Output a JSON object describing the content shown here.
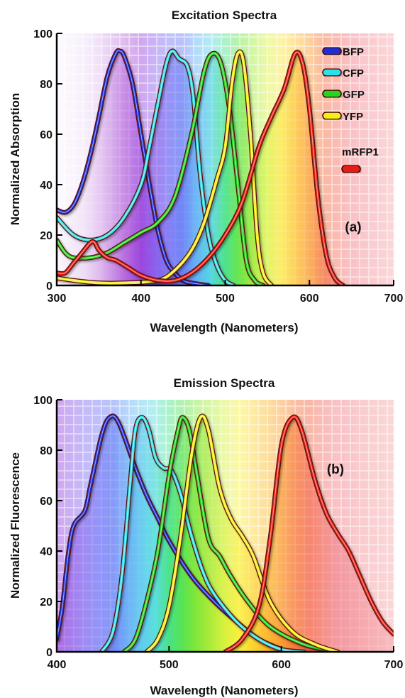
{
  "chart_data": [
    {
      "type": "area",
      "title": "Excitation Spectra",
      "xlabel": "Wavelength (Nanometers)",
      "ylabel": "Normalized Absorption",
      "panel_label": "(a)",
      "xlim": [
        300,
        700
      ],
      "ylim": [
        0,
        100
      ],
      "x_ticks": [
        "300",
        "400",
        "500",
        "600",
        "700"
      ],
      "y_ticks": [
        "0",
        "20",
        "40",
        "60",
        "80",
        "100"
      ],
      "legend_position": "top-right",
      "series": [
        {
          "name": "BFP",
          "color": "#1a2fd6",
          "points": [
            [
              300,
              30
            ],
            [
              310,
              29
            ],
            [
              320,
              32
            ],
            [
              330,
              40
            ],
            [
              340,
              52
            ],
            [
              350,
              67
            ],
            [
              360,
              83
            ],
            [
              370,
              92
            ],
            [
              375,
              93
            ],
            [
              380,
              91
            ],
            [
              390,
              80
            ],
            [
              400,
              60
            ],
            [
              410,
              40
            ],
            [
              420,
              22
            ],
            [
              430,
              10
            ],
            [
              440,
              5
            ],
            [
              450,
              2
            ],
            [
              460,
              1
            ],
            [
              480,
              0
            ]
          ]
        },
        {
          "name": "CFP",
          "color": "#2ee0e8",
          "points": [
            [
              300,
              27
            ],
            [
              320,
              20
            ],
            [
              340,
              18
            ],
            [
              360,
              20
            ],
            [
              380,
              27
            ],
            [
              400,
              40
            ],
            [
              410,
              55
            ],
            [
              420,
              72
            ],
            [
              430,
              88
            ],
            [
              437,
              93
            ],
            [
              445,
              90
            ],
            [
              455,
              87
            ],
            [
              462,
              75
            ],
            [
              470,
              45
            ],
            [
              480,
              20
            ],
            [
              490,
              8
            ],
            [
              500,
              2
            ],
            [
              510,
              0
            ]
          ]
        },
        {
          "name": "GFP",
          "color": "#22d61e",
          "points": [
            [
              300,
              18
            ],
            [
              310,
              13
            ],
            [
              320,
              11
            ],
            [
              340,
              11
            ],
            [
              360,
              13
            ],
            [
              380,
              17
            ],
            [
              400,
              21
            ],
            [
              420,
              25
            ],
            [
              440,
              35
            ],
            [
              460,
              60
            ],
            [
              475,
              85
            ],
            [
              485,
              92
            ],
            [
              495,
              88
            ],
            [
              505,
              70
            ],
            [
              515,
              40
            ],
            [
              525,
              10
            ],
            [
              535,
              2
            ],
            [
              545,
              0
            ]
          ]
        },
        {
          "name": "YFP",
          "color": "#f2f01e",
          "points": [
            [
              300,
              3
            ],
            [
              320,
              2
            ],
            [
              350,
              1
            ],
            [
              380,
              1
            ],
            [
              420,
              2
            ],
            [
              440,
              6
            ],
            [
              460,
              14
            ],
            [
              475,
              25
            ],
            [
              490,
              42
            ],
            [
              500,
              55
            ],
            [
              508,
              80
            ],
            [
              515,
              92
            ],
            [
              522,
              88
            ],
            [
              530,
              60
            ],
            [
              538,
              20
            ],
            [
              545,
              5
            ],
            [
              555,
              0
            ]
          ]
        },
        {
          "name": "mRFP1",
          "color": "#e81f12",
          "points": [
            [
              300,
              5
            ],
            [
              310,
              5
            ],
            [
              320,
              9
            ],
            [
              330,
              13
            ],
            [
              340,
              17
            ],
            [
              345,
              17
            ],
            [
              350,
              14
            ],
            [
              360,
              11
            ],
            [
              370,
              10
            ],
            [
              385,
              7
            ],
            [
              400,
              4
            ],
            [
              420,
              2
            ],
            [
              440,
              2
            ],
            [
              460,
              5
            ],
            [
              480,
              11
            ],
            [
              500,
              20
            ],
            [
              520,
              33
            ],
            [
              540,
              55
            ],
            [
              555,
              67
            ],
            [
              570,
              78
            ],
            [
              583,
              92
            ],
            [
              592,
              88
            ],
            [
              600,
              70
            ],
            [
              610,
              35
            ],
            [
              620,
              12
            ],
            [
              630,
              3
            ],
            [
              640,
              0
            ]
          ]
        }
      ]
    },
    {
      "type": "area",
      "title": "Emission Spectra",
      "xlabel": "Wavelength (Nanometers)",
      "ylabel": "Normalized Fluorescence",
      "panel_label": "(b)",
      "xlim": [
        400,
        700
      ],
      "ylim": [
        0,
        100
      ],
      "x_ticks": [
        "400",
        "500",
        "600",
        "700"
      ],
      "y_ticks": [
        "0",
        "20",
        "40",
        "60",
        "80",
        "100"
      ],
      "series": [
        {
          "name": "BFP",
          "color": "#1a2fd6",
          "points": [
            [
              400,
              5
            ],
            [
              405,
              18
            ],
            [
              410,
              38
            ],
            [
              415,
              50
            ],
            [
              425,
              56
            ],
            [
              430,
              66
            ],
            [
              440,
              86
            ],
            [
              447,
              93
            ],
            [
              455,
              91
            ],
            [
              470,
              73
            ],
            [
              480,
              62
            ],
            [
              490,
              53
            ],
            [
              500,
              44
            ],
            [
              520,
              30
            ],
            [
              540,
              20
            ],
            [
              560,
              12
            ],
            [
              580,
              5
            ],
            [
              600,
              1
            ]
          ]
        },
        {
          "name": "CFP",
          "color": "#2ee0e8",
          "points": [
            [
              440,
              0
            ],
            [
              450,
              8
            ],
            [
              458,
              30
            ],
            [
              465,
              65
            ],
            [
              470,
              88
            ],
            [
              476,
              93
            ],
            [
              482,
              88
            ],
            [
              488,
              77
            ],
            [
              495,
              73
            ],
            [
              502,
              72
            ],
            [
              510,
              63
            ],
            [
              520,
              46
            ],
            [
              530,
              32
            ],
            [
              540,
              23
            ],
            [
              560,
              12
            ],
            [
              580,
              5
            ],
            [
              600,
              1
            ],
            [
              620,
              0
            ]
          ]
        },
        {
          "name": "GFP",
          "color": "#22d61e",
          "points": [
            [
              460,
              0
            ],
            [
              470,
              5
            ],
            [
              480,
              20
            ],
            [
              490,
              40
            ],
            [
              500,
              70
            ],
            [
              508,
              88
            ],
            [
              512,
              93
            ],
            [
              518,
              88
            ],
            [
              525,
              70
            ],
            [
              535,
              45
            ],
            [
              545,
              38
            ],
            [
              555,
              30
            ],
            [
              570,
              20
            ],
            [
              590,
              10
            ],
            [
              620,
              3
            ],
            [
              650,
              0
            ]
          ]
        },
        {
          "name": "YFP",
          "color": "#f2f01e",
          "points": [
            [
              480,
              0
            ],
            [
              490,
              5
            ],
            [
              500,
              18
            ],
            [
              510,
              45
            ],
            [
              520,
              78
            ],
            [
              528,
              93
            ],
            [
              535,
              88
            ],
            [
              545,
              65
            ],
            [
              555,
              53
            ],
            [
              565,
              46
            ],
            [
              575,
              38
            ],
            [
              590,
              20
            ],
            [
              610,
              8
            ],
            [
              630,
              3
            ],
            [
              650,
              0
            ]
          ]
        },
        {
          "name": "mRFP1",
          "color": "#e81f12",
          "points": [
            [
              550,
              0
            ],
            [
              565,
              5
            ],
            [
              580,
              18
            ],
            [
              590,
              45
            ],
            [
              600,
              82
            ],
            [
              610,
              93
            ],
            [
              618,
              88
            ],
            [
              630,
              68
            ],
            [
              640,
              55
            ],
            [
              650,
              47
            ],
            [
              660,
              40
            ],
            [
              670,
              30
            ],
            [
              680,
              20
            ],
            [
              690,
              12
            ],
            [
              700,
              7
            ]
          ]
        }
      ]
    }
  ]
}
